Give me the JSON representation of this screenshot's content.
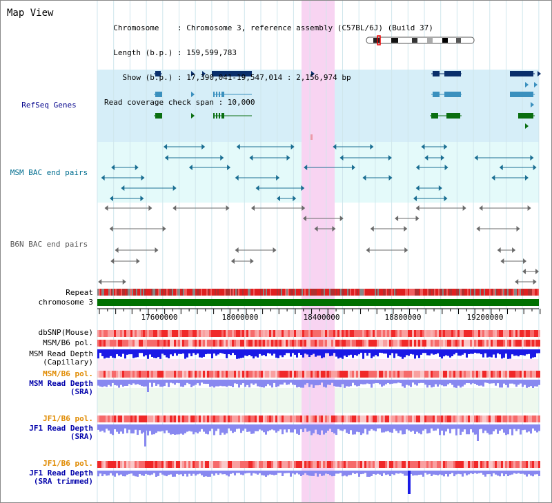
{
  "header": {
    "title": "Map View",
    "info_lines": [
      "  Chromosome    : Chromosome 3, reference assembly (C57BL/6J) (Build 37)",
      "  Length (b.p.) : 159,599,783",
      "    Show (b.p.) : 17,390,041-19,547,014 : 2,156,974 bp",
      "Read coverage check span : 10,000"
    ]
  },
  "tracks": {
    "refseq": {
      "label": "RefSeq Genes",
      "color": "#00008B"
    },
    "msm_bac": {
      "label": "MSM BAC end pairs",
      "color": "#006D8F"
    },
    "b6n_bac": {
      "label": "B6N BAC end pairs",
      "color": "#555555"
    },
    "repeat": {
      "label": "Repeat"
    },
    "chromosome": {
      "label": "chromosome 3",
      "color": "#007000"
    },
    "dbsnp": {
      "label": "dbSNP(Mouse)"
    },
    "msm_b6_pol_1": {
      "label": "MSM/B6 pol."
    },
    "msm_depth_cap": {
      "label": "MSM Read Depth",
      "label2": "(Capillary)"
    },
    "msm_b6_pol_2": {
      "label": "MSM/B6 pol.",
      "color": "#E08A00"
    },
    "msm_depth_sra": {
      "label": "MSM Read Depth",
      "label2": "(SRA)"
    },
    "jf1_b6_pol_1": {
      "label": "JF1/B6 pol.",
      "color": "#E08A00"
    },
    "jf1_depth_sra": {
      "label": "JF1 Read Depth",
      "label2": "(SRA)"
    },
    "jf1_b6_pol_2": {
      "label": "JF1/B6 pol.",
      "color": "#E08A00"
    },
    "jf1_depth_trim": {
      "label": "JF1 Read Depth",
      "label2": "(SRA trimmed)"
    }
  },
  "scale": {
    "ticks": [
      "17600000",
      "18000000",
      "18400000",
      "18800000",
      "19200000"
    ]
  },
  "colors": {
    "highlight": "#F8D4F2",
    "refseq_bg": "#D6EEF8",
    "msm_bg": "#E4FAFA",
    "sra_bg": "#EEF9EE",
    "depth_blue": "#1A1AE6",
    "depth_light": "#8888F0",
    "pol_red": "#F04040"
  }
}
